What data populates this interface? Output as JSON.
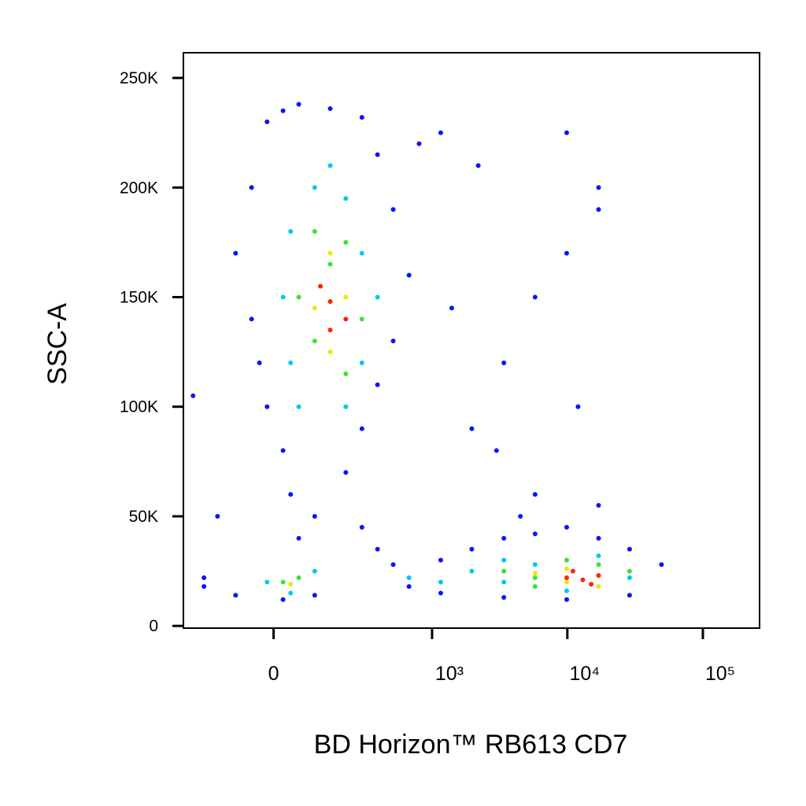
{
  "chart_data": {
    "type": "scatter",
    "xlabel": "BD Horizon™ RB613 CD7",
    "ylabel": "SSC-A",
    "xscale": "biexponential",
    "xlim": [
      -300,
      262000
    ],
    "ylim": [
      -1000,
      261500
    ],
    "xticks": [
      0,
      {
        "value": 1000,
        "label": "10³"
      },
      {
        "value": 10000,
        "label": "10⁴"
      },
      {
        "value": 100000,
        "label": "10⁵"
      }
    ],
    "yticks": [
      0,
      {
        "value": 50000,
        "label": "50K"
      },
      {
        "value": 100000,
        "label": "100K"
      },
      {
        "value": 150000,
        "label": "150K"
      },
      {
        "value": 200000,
        "label": "200K"
      },
      {
        "value": 250000,
        "label": "250K"
      }
    ],
    "series": [
      {
        "color": "#0a14ff",
        "x": [
          -52,
          -15,
          22,
          60,
          152,
          290,
          386,
          510,
          -94,
          -52,
          -33,
          -15,
          22,
          40,
          60,
          103,
          212,
          290,
          386,
          510,
          672,
          290,
          386,
          510,
          672,
          1160,
          1970,
          3400,
          5780,
          9890,
          17000,
          28800,
          49500,
          28800,
          9890,
          3400,
          1160,
          -201,
          -94,
          22,
          103,
          -201,
          1970,
          3400,
          5780,
          9890,
          17000,
          9890,
          1160,
          5780,
          17000,
          2200,
          800,
          -150,
          -250,
          12000,
          4500,
          17000,
          1400,
          3000
        ],
        "values": [
          200000,
          230000,
          235000,
          238000,
          236000,
          232000,
          215000,
          190000,
          170000,
          140000,
          120000,
          100000,
          80000,
          60000,
          40000,
          50000,
          70000,
          90000,
          110000,
          130000,
          160000,
          45000,
          35000,
          28000,
          18000,
          30000,
          35000,
          40000,
          42000,
          45000,
          40000,
          35000,
          28000,
          14000,
          12000,
          13000,
          15000,
          18000,
          14000,
          12000,
          14000,
          22000,
          90000,
          120000,
          150000,
          170000,
          190000,
          225000,
          225000,
          60000,
          200000,
          210000,
          220000,
          50000,
          105000,
          100000,
          50000,
          55000,
          145000,
          80000
        ]
      },
      {
        "color": "#00c8f0",
        "x": [
          40,
          103,
          212,
          290,
          386,
          40,
          60,
          212,
          290,
          22,
          152,
          -15,
          103,
          40,
          672,
          1970,
          3400,
          5780,
          17000,
          28800,
          3400,
          9890,
          1160
        ],
        "values": [
          180000,
          200000,
          195000,
          170000,
          150000,
          120000,
          100000,
          100000,
          120000,
          150000,
          210000,
          20000,
          25000,
          15000,
          22000,
          25000,
          20000,
          28000,
          32000,
          22000,
          30000,
          16000,
          20000
        ]
      },
      {
        "color": "#3ee03a",
        "x": [
          103,
          212,
          152,
          290,
          103,
          212,
          60,
          22,
          60,
          3400,
          5780,
          17000,
          5780,
          9890,
          28800
        ],
        "values": [
          180000,
          175000,
          165000,
          140000,
          130000,
          115000,
          150000,
          20000,
          22000,
          25000,
          22000,
          28000,
          18000,
          30000,
          25000
        ]
      },
      {
        "color": "#f0e600",
        "x": [
          152,
          212,
          103,
          152,
          40,
          9890,
          17000,
          9890,
          5780
        ],
        "values": [
          170000,
          150000,
          145000,
          125000,
          19000,
          26000,
          18000,
          20000,
          24000
        ]
      },
      {
        "color": "#ff2400",
        "x": [
          152,
          212,
          152,
          120,
          9890,
          13000,
          17000,
          11000,
          15000
        ],
        "values": [
          148000,
          140000,
          135000,
          155000,
          22000,
          21000,
          23000,
          25000,
          19000
        ]
      }
    ]
  }
}
